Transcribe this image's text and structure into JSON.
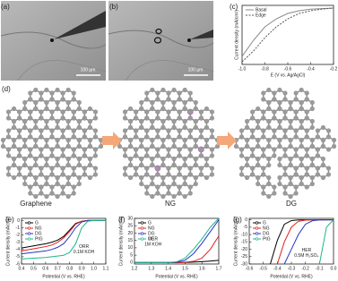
{
  "figure": {
    "a_label": "(a)",
    "b_label": "(b)",
    "d_label": "(d)",
    "scale_a": "100 µm",
    "scale_b": "100 µm",
    "stages": [
      "Graphene",
      "NG",
      "DG"
    ]
  },
  "chart_data": [
    {
      "type": "line",
      "label": "(c)",
      "xlabel": "E (V vs. Ag/AgCl)",
      "ylabel": "Current density (mA/cm²)",
      "x": [
        -1.0,
        -0.9,
        -0.8,
        -0.7,
        -0.6,
        -0.5,
        -0.4,
        -0.3,
        -0.2
      ],
      "series": [
        {
          "name": "Basal",
          "color": "#888888",
          "linestyle": "solid",
          "values": [
            -0.9,
            -0.6,
            -0.35,
            -0.2,
            -0.1,
            -0.05,
            -0.02,
            -0.01,
            0
          ]
        },
        {
          "name": "Edge",
          "color": "#555555",
          "linestyle": "dashed",
          "values": [
            -1.0,
            -0.8,
            -0.55,
            -0.35,
            -0.2,
            -0.1,
            -0.05,
            -0.02,
            0
          ]
        }
      ],
      "xlim": [
        -1.0,
        -0.2
      ],
      "ylim": [
        -1.05,
        0.05
      ],
      "xticks": [
        {
          "value": -1,
          "label": "-1.0"
        },
        -0.8,
        -0.6,
        -0.4,
        -0.2
      ],
      "yticks": [],
      "legend": "upper left"
    },
    {
      "type": "line",
      "label": "(e)",
      "xlabel": "Potential (V vs. RHE)",
      "ylabel": "Current density (mA/cm²)",
      "annotation": [
        "ORR",
        "0.1M KOH"
      ],
      "x": [
        0.4,
        0.5,
        0.6,
        0.65,
        0.7,
        0.75,
        0.8,
        0.85,
        0.9,
        0.95,
        1.0,
        1.1
      ],
      "series": [
        {
          "name": "G",
          "color": "#000000",
          "linestyle": "solid",
          "values": [
            -3.8,
            -3.5,
            -3.2,
            -3.0,
            -2.7,
            -2.2,
            -1.3,
            -0.4,
            -0.1,
            0,
            0,
            0
          ]
        },
        {
          "name": "NG",
          "color": "#e0201c",
          "linestyle": "solid",
          "values": [
            -4.2,
            -3.9,
            -3.6,
            -3.4,
            -3.0,
            -2.4,
            -1.5,
            -0.5,
            -0.1,
            0,
            0,
            0
          ]
        },
        {
          "name": "DG",
          "color": "#2434c8",
          "linestyle": "solid",
          "values": [
            -4.6,
            -4.4,
            -4.2,
            -4.0,
            -3.7,
            -3.2,
            -2.2,
            -1.0,
            -0.2,
            0,
            0,
            0
          ]
        },
        {
          "name": "PtG",
          "color": "#1fb58a",
          "linestyle": "solid",
          "values": [
            -5.3,
            -5.2,
            -5.1,
            -5.0,
            -4.9,
            -4.8,
            -4.4,
            -3.2,
            -1.0,
            -0.1,
            0,
            0
          ]
        }
      ],
      "xlim": [
        0.4,
        1.1
      ],
      "ylim": [
        -6,
        0.3
      ],
      "xticks": [
        0.4,
        0.5,
        0.6,
        0.7,
        0.8,
        0.9,
        {
          "value": 1,
          "label": "1.0"
        },
        1.1
      ],
      "yticks": [
        -6,
        -5,
        -4,
        -3,
        -2,
        -1,
        0
      ],
      "legend": "upper left"
    },
    {
      "type": "line",
      "label": "(f)",
      "xlabel": "Potential (V vs. RHE)",
      "ylabel": "Current density (mA/cm²)",
      "annotation": [
        "OER",
        "1M KOH"
      ],
      "x": [
        1.2,
        1.3,
        1.4,
        1.45,
        1.5,
        1.55,
        1.6,
        1.65,
        1.7
      ],
      "series": [
        {
          "name": "G",
          "color": "#000000",
          "linestyle": "solid",
          "values": [
            0,
            0,
            0,
            0,
            0.1,
            0.3,
            0.6,
            1.0,
            1.5
          ]
        },
        {
          "name": "NG",
          "color": "#e0201c",
          "linestyle": "solid",
          "values": [
            0,
            0,
            0,
            0,
            0.2,
            0.8,
            3,
            9,
            18
          ]
        },
        {
          "name": "DG",
          "color": "#2434c8",
          "linestyle": "solid",
          "values": [
            0,
            0,
            0,
            0.2,
            1.5,
            6,
            13,
            21,
            29
          ]
        },
        {
          "name": "IrG",
          "color": "#1fb58a",
          "linestyle": "solid",
          "values": [
            0,
            0,
            0,
            0.5,
            3,
            9,
            16,
            24,
            30
          ]
        }
      ],
      "xlim": [
        1.2,
        1.7
      ],
      "ylim": [
        -1,
        30
      ],
      "xticks": [
        1.2,
        1.3,
        1.4,
        1.5,
        1.6,
        1.7
      ],
      "yticks": [
        0,
        5,
        10,
        15,
        20,
        25,
        30
      ],
      "legend": "upper left"
    },
    {
      "type": "line",
      "label": "(g)",
      "xlabel": "Potential (V vs. RHE)",
      "ylabel": "Current density (mA/cm²)",
      "annotation": [
        "HER",
        "0.5M H₂SO₄"
      ],
      "x": [
        -0.6,
        -0.5,
        -0.45,
        -0.4,
        -0.35,
        -0.3,
        -0.25,
        -0.2,
        -0.15,
        -0.1,
        -0.05,
        0
      ],
      "series": [
        {
          "name": "G",
          "color": "#000000",
          "linestyle": "solid",
          "values": [
            null,
            null,
            -30,
            -14,
            -3,
            -0.5,
            -0.1,
            0,
            0,
            0,
            0,
            0
          ]
        },
        {
          "name": "NG",
          "color": "#e0201c",
          "linestyle": "solid",
          "values": [
            null,
            null,
            null,
            -30,
            -15,
            -5,
            -1,
            -0.2,
            0,
            0,
            0,
            0
          ]
        },
        {
          "name": "DG",
          "color": "#2434c8",
          "linestyle": "solid",
          "values": [
            null,
            null,
            null,
            null,
            -30,
            -20,
            -10,
            -3,
            -0.6,
            -0.1,
            0,
            0
          ]
        },
        {
          "name": "PtG",
          "color": "#1fb58a",
          "linestyle": "solid",
          "values": [
            null,
            null,
            null,
            null,
            null,
            null,
            null,
            null,
            null,
            -30,
            -5,
            0
          ]
        }
      ],
      "xlim": [
        -0.6,
        0
      ],
      "ylim": [
        -30,
        1
      ],
      "xticks": [
        -0.6,
        -0.5,
        -0.4,
        -0.3,
        -0.2,
        -0.1,
        {
          "value": 0,
          "label": "0.0"
        }
      ],
      "yticks": [
        -30,
        -25,
        -20,
        -15,
        -10,
        -5,
        0
      ],
      "legend": "upper left"
    }
  ]
}
